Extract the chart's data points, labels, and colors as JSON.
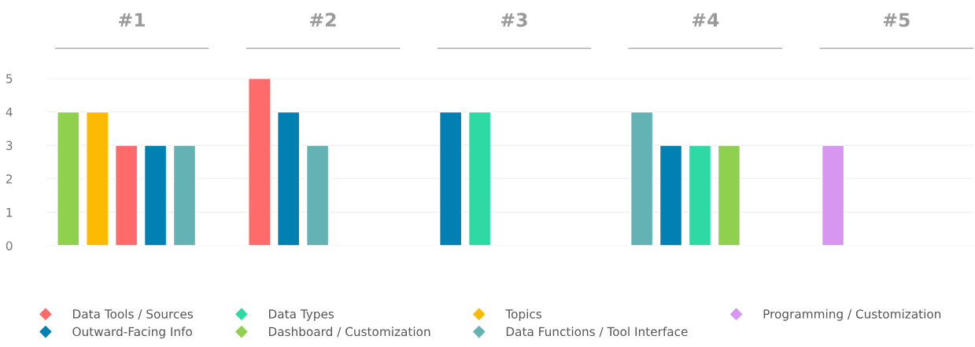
{
  "chart_data": {
    "type": "bar",
    "categories": [
      "#1",
      "#2",
      "#3",
      "#4",
      "#5"
    ],
    "series": [
      {
        "name": "Data Tools / Sources",
        "color": "#ff6b6b",
        "values": [
          3,
          5,
          null,
          null,
          null
        ]
      },
      {
        "name": "Outward-Facing Info",
        "color": "#0080b3",
        "values": [
          3,
          4,
          4,
          3,
          null
        ]
      },
      {
        "name": "Data Types",
        "color": "#2ed9a3",
        "values": [
          null,
          null,
          4,
          3,
          null
        ]
      },
      {
        "name": "Dashboard / Customization",
        "color": "#8fd14f",
        "values": [
          4,
          null,
          null,
          3,
          null
        ]
      },
      {
        "name": "Topics",
        "color": "#fdbb00",
        "values": [
          4,
          null,
          null,
          null,
          null
        ]
      },
      {
        "name": "Data Functions / Tool Interface",
        "color": "#63b3b5",
        "values": [
          3,
          3,
          null,
          4,
          null
        ]
      },
      {
        "name": "Programming / Customization",
        "color": "#d796f0",
        "values": [
          null,
          null,
          null,
          null,
          3
        ]
      }
    ],
    "ylim": [
      0,
      5
    ],
    "yticks": [
      0,
      1,
      2,
      3,
      4,
      5
    ],
    "grid": "y",
    "legend": "bottom",
    "marker": "diamond"
  }
}
